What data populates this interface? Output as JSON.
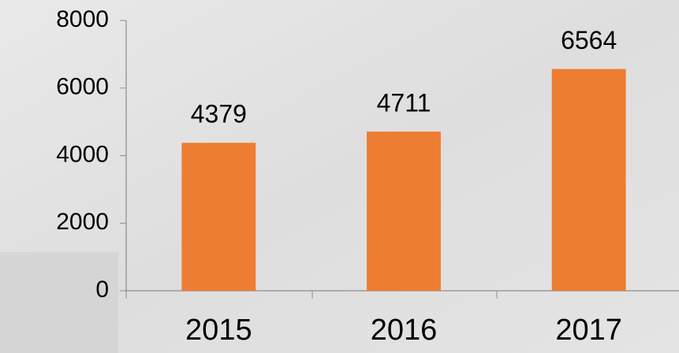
{
  "chart_data": {
    "type": "bar",
    "categories": [
      "2015",
      "2016",
      "2017"
    ],
    "values": [
      4379,
      4711,
      6564
    ],
    "color": "#ed7d31",
    "ylim": [
      0,
      8000
    ],
    "yticks": [
      0,
      2000,
      4000,
      6000,
      8000
    ],
    "grid": false
  }
}
